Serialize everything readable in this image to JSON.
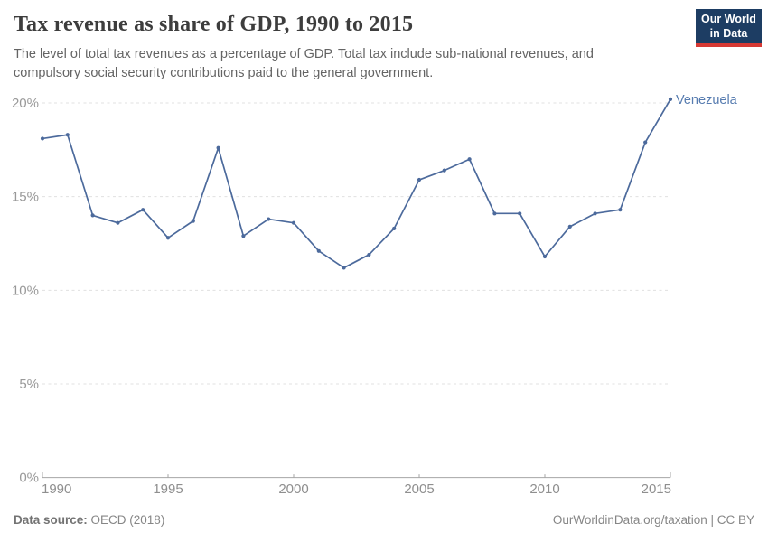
{
  "header": {
    "title": "Tax revenue as share of GDP, 1990 to 2015",
    "subtitle": "The level of total tax revenues as a percentage of GDP. Total tax include sub-national revenues, and compulsory social security contributions paid to the general government.",
    "logo": {
      "line1": "Our World",
      "line2": "in Data",
      "bg_color": "#1d3d63",
      "accent_color": "#d73934"
    }
  },
  "chart_data": {
    "type": "line",
    "title": "Tax revenue as share of GDP, 1990 to 2015",
    "xlabel": "",
    "ylabel": "",
    "xlim": [
      1990,
      2015
    ],
    "ylim": [
      0,
      20
    ],
    "x_ticks": [
      1990,
      1995,
      2000,
      2005,
      2010,
      2015
    ],
    "y_ticks": [
      0,
      5,
      10,
      15,
      20
    ],
    "y_tick_suffix": "%",
    "grid": "horizontal-dashed",
    "legend_position": "end-of-line-label",
    "series": [
      {
        "name": "Venezuela",
        "color": "#4C6A9C",
        "label_color": "#577cb0",
        "x": [
          1990,
          1991,
          1992,
          1993,
          1994,
          1995,
          1996,
          1997,
          1998,
          1999,
          2000,
          2001,
          2002,
          2003,
          2004,
          2005,
          2006,
          2007,
          2008,
          2009,
          2010,
          2011,
          2012,
          2013,
          2014,
          2015
        ],
        "values": [
          18.1,
          18.3,
          14.0,
          13.6,
          14.3,
          12.8,
          13.7,
          17.6,
          12.9,
          13.8,
          13.6,
          12.1,
          11.2,
          11.9,
          13.3,
          15.9,
          16.4,
          17.0,
          14.1,
          14.1,
          11.8,
          13.4,
          14.1,
          14.3,
          17.9,
          20.2
        ]
      }
    ],
    "axis_colors": {
      "grid": "#e0e0e0",
      "axis_line": "#a6a6a6",
      "tick_label": "#999999"
    }
  },
  "footer": {
    "source_label": "Data source:",
    "source_value": " OECD (2018)",
    "credit": "OurWorldinData.org/taxation | CC BY"
  }
}
